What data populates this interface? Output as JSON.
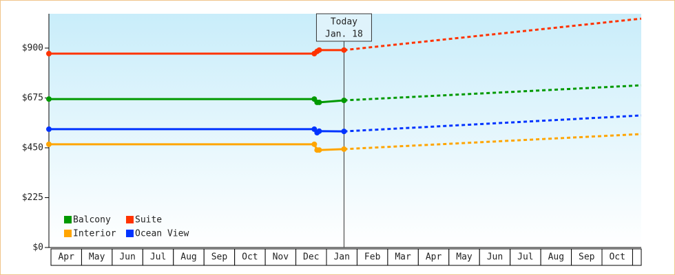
{
  "chart_data": {
    "type": "line",
    "categories": [
      "Apr",
      "May",
      "Jun",
      "Jul",
      "Aug",
      "Sep",
      "Oct",
      "Nov",
      "Dec",
      "Jan",
      "Feb",
      "Mar",
      "Apr",
      "May",
      "Jun",
      "Jul",
      "Aug",
      "Sep",
      "Oct",
      null
    ],
    "x": [
      0,
      8.67,
      8.76,
      8.83,
      9.64,
      14.5,
      19.35
    ],
    "xlim": [
      0,
      19.35
    ],
    "ylim": [
      0,
      1055
    ],
    "yticks": [
      {
        "value": 0,
        "label": "$0"
      },
      {
        "value": 225,
        "label": "$225"
      },
      {
        "value": 450,
        "label": "$450"
      },
      {
        "value": 675,
        "label": "$675"
      },
      {
        "value": 900,
        "label": "$900"
      }
    ],
    "grid": false,
    "legend": "bottom-left",
    "annotation": {
      "x": 9.64,
      "lines": [
        "Today",
        "Jan. 18"
      ]
    },
    "series": [
      {
        "name": "Balcony",
        "color": "#009900",
        "values": [
          670,
          670,
          655,
          655,
          664,
          698,
          732
        ]
      },
      {
        "name": "Suite",
        "color": "#ff3300",
        "values": [
          875,
          875,
          885,
          891,
          891,
          962,
          1033
        ]
      },
      {
        "name": "Interior",
        "color": "#ffa500",
        "values": [
          466,
          466,
          440,
          440,
          444,
          478,
          512
        ]
      },
      {
        "name": "Ocean View",
        "color": "#0033ff",
        "values": [
          534,
          534,
          518,
          525,
          524,
          560,
          596
        ]
      }
    ]
  }
}
